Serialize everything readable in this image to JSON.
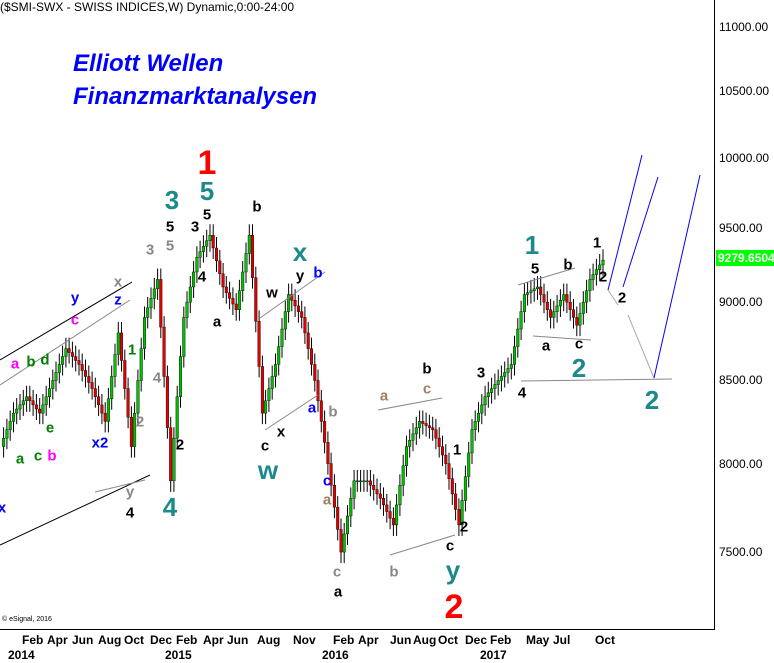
{
  "header": "($SMI-SWX - SWISS INDICES,W) Dynamic,0:00-24:00",
  "titles": [
    "Elliott Wellen",
    "Finanzmarktanalysen"
  ],
  "copyright": "© eSignal, 2016",
  "last_price": "9279.6504",
  "colors": {
    "up": "#00c000",
    "down": "#e00000",
    "wave_blue": "#0000ff",
    "teal": "#1a8a8a",
    "red": "#ff0000",
    "gray": "#8a8a8a",
    "magenta": "#ff00ff",
    "green": "#008000",
    "tan": "#a08060",
    "last_price_bg": "#00ff00"
  },
  "chart_data": {
    "type": "candlestick",
    "title": "($SMI-SWX - SWISS INDICES,W) Dynamic,0:00-24:00",
    "yscale": "log",
    "ylim": [
      7100,
      11300
    ],
    "y_ticks": [
      "11000.00",
      "10500.00",
      "10000.00",
      "9500.00",
      "9000.00",
      "8500.00",
      "8000.00",
      "7500.00"
    ],
    "x_ticks": [
      "Feb",
      "Apr",
      "Jun",
      "Aug",
      "Oct",
      "Dec",
      "Feb",
      "Apr",
      "Jun",
      "Aug",
      "Nov",
      "Feb",
      "Apr",
      "Jun",
      "Aug",
      "Oct",
      "Dec",
      "Feb",
      "May",
      "Jul",
      "Oct"
    ],
    "x_years": [
      "2014",
      "2015",
      "2016",
      "2017"
    ],
    "series": [
      {
        "date": "2013-12",
        "close": 8100
      },
      {
        "date": "2014-01",
        "close": 8300
      },
      {
        "date": "2014-02",
        "close": 8400
      },
      {
        "date": "2014-03",
        "close": 8300
      },
      {
        "date": "2014-04",
        "close": 8500
      },
      {
        "date": "2014-05",
        "close": 8700
      },
      {
        "date": "2014-06",
        "close": 8600
      },
      {
        "date": "2014-07",
        "close": 8450
      },
      {
        "date": "2014-08",
        "close": 8250
      },
      {
        "date": "2014-09",
        "close": 8800
      },
      {
        "date": "2014-10",
        "close": 8100
      },
      {
        "date": "2014-11",
        "close": 8900
      },
      {
        "date": "2014-12",
        "close": 9150
      },
      {
        "date": "2015-01",
        "close": 7900
      },
      {
        "date": "2015-02",
        "close": 8900
      },
      {
        "date": "2015-03",
        "close": 9300
      },
      {
        "date": "2015-04",
        "close": 9450
      },
      {
        "date": "2015-05",
        "close": 9100
      },
      {
        "date": "2015-06",
        "close": 8950
      },
      {
        "date": "2015-07",
        "close": 9450
      },
      {
        "date": "2015-08",
        "close": 8300
      },
      {
        "date": "2015-09",
        "close": 8600
      },
      {
        "date": "2015-10",
        "close": 9050
      },
      {
        "date": "2015-11",
        "close": 8900
      },
      {
        "date": "2015-12",
        "close": 8500
      },
      {
        "date": "2016-01",
        "close": 8000
      },
      {
        "date": "2016-02",
        "close": 7500
      },
      {
        "date": "2016-03",
        "close": 7900
      },
      {
        "date": "2016-04",
        "close": 7900
      },
      {
        "date": "2016-05",
        "close": 7800
      },
      {
        "date": "2016-06",
        "close": 7650
      },
      {
        "date": "2016-07",
        "close": 8100
      },
      {
        "date": "2016-08",
        "close": 8250
      },
      {
        "date": "2016-09",
        "close": 8200
      },
      {
        "date": "2016-10",
        "close": 8000
      },
      {
        "date": "2016-11",
        "close": 7650
      },
      {
        "date": "2016-12",
        "close": 8200
      },
      {
        "date": "2017-01",
        "close": 8400
      },
      {
        "date": "2017-02",
        "close": 8500
      },
      {
        "date": "2017-03",
        "close": 8600
      },
      {
        "date": "2017-04",
        "close": 9050
      },
      {
        "date": "2017-05",
        "close": 9100
      },
      {
        "date": "2017-06",
        "close": 8900
      },
      {
        "date": "2017-07",
        "close": 9050
      },
      {
        "date": "2017-08",
        "close": 8850
      },
      {
        "date": "2017-09",
        "close": 9150
      },
      {
        "date": "2017-10",
        "close": 9280
      }
    ],
    "annotations": [
      "1",
      "5",
      "3",
      "5",
      "3",
      "5",
      "3",
      "5",
      "x",
      "z",
      "y",
      "c",
      "4",
      "1",
      "2",
      "y",
      "4",
      "4",
      "2",
      "4",
      "a",
      "b",
      "w",
      "y",
      "x",
      "b",
      "a",
      "b",
      "c",
      "x",
      "w",
      "c",
      "a",
      "c",
      "a",
      "a",
      "b",
      "c",
      "b",
      "1",
      "2",
      "c",
      "y",
      "2",
      "3",
      "4",
      "1",
      "5",
      "b",
      "1",
      "a",
      "c",
      "2",
      "2",
      "2",
      "2",
      "a",
      "b",
      "d",
      "a",
      "c",
      "b",
      "e",
      "x2",
      "x"
    ]
  }
}
